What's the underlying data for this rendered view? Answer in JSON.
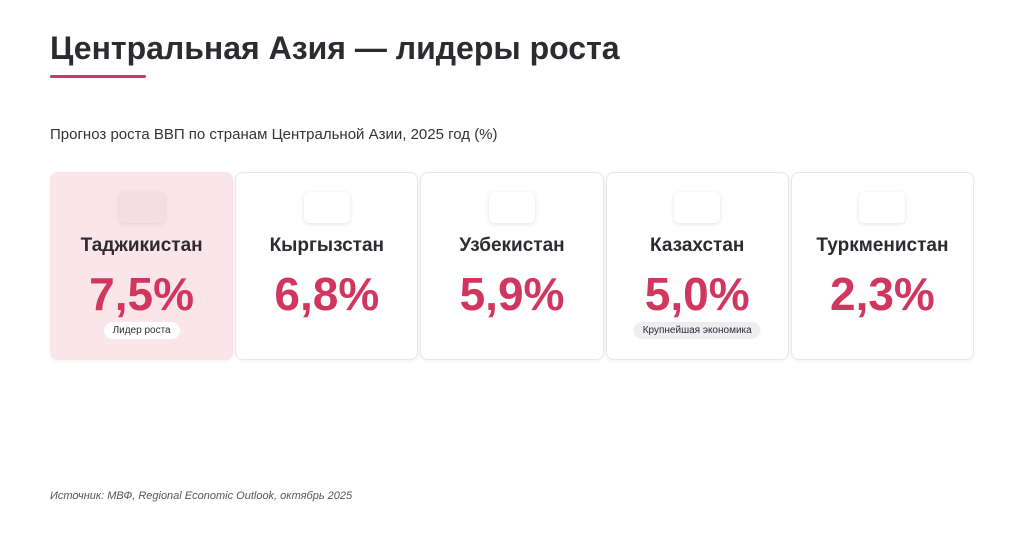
{
  "header": {
    "title": "Центральная Азия — лидеры роста",
    "subtitle": "Прогноз роста ВВП по странам Центральной Азии, 2025 год (%)"
  },
  "colors": {
    "accent": "#d0365e",
    "highlight_bg": "#fae5eb",
    "badge_neutral_bg": "#eeeef0"
  },
  "cards": [
    {
      "country": "Таджикистан",
      "value": "7,5%",
      "badge": "Лидер роста",
      "highlight": true,
      "icon": "flag-placeholder-icon"
    },
    {
      "country": "Кыргызстан",
      "value": "6,8%",
      "badge": "",
      "highlight": false,
      "icon": "flag-placeholder-icon"
    },
    {
      "country": "Узбекистан",
      "value": "5,9%",
      "badge": "",
      "highlight": false,
      "icon": "flag-placeholder-icon"
    },
    {
      "country": "Казахстан",
      "value": "5,0%",
      "badge": "Крупнейшая экономика",
      "highlight": false,
      "icon": "flag-placeholder-icon"
    },
    {
      "country": "Туркменистан",
      "value": "2,3%",
      "badge": "",
      "highlight": false,
      "icon": "flag-placeholder-icon"
    }
  ],
  "footer": {
    "source": "Источник: МВФ, Regional Economic Outlook, октябрь 2025"
  }
}
